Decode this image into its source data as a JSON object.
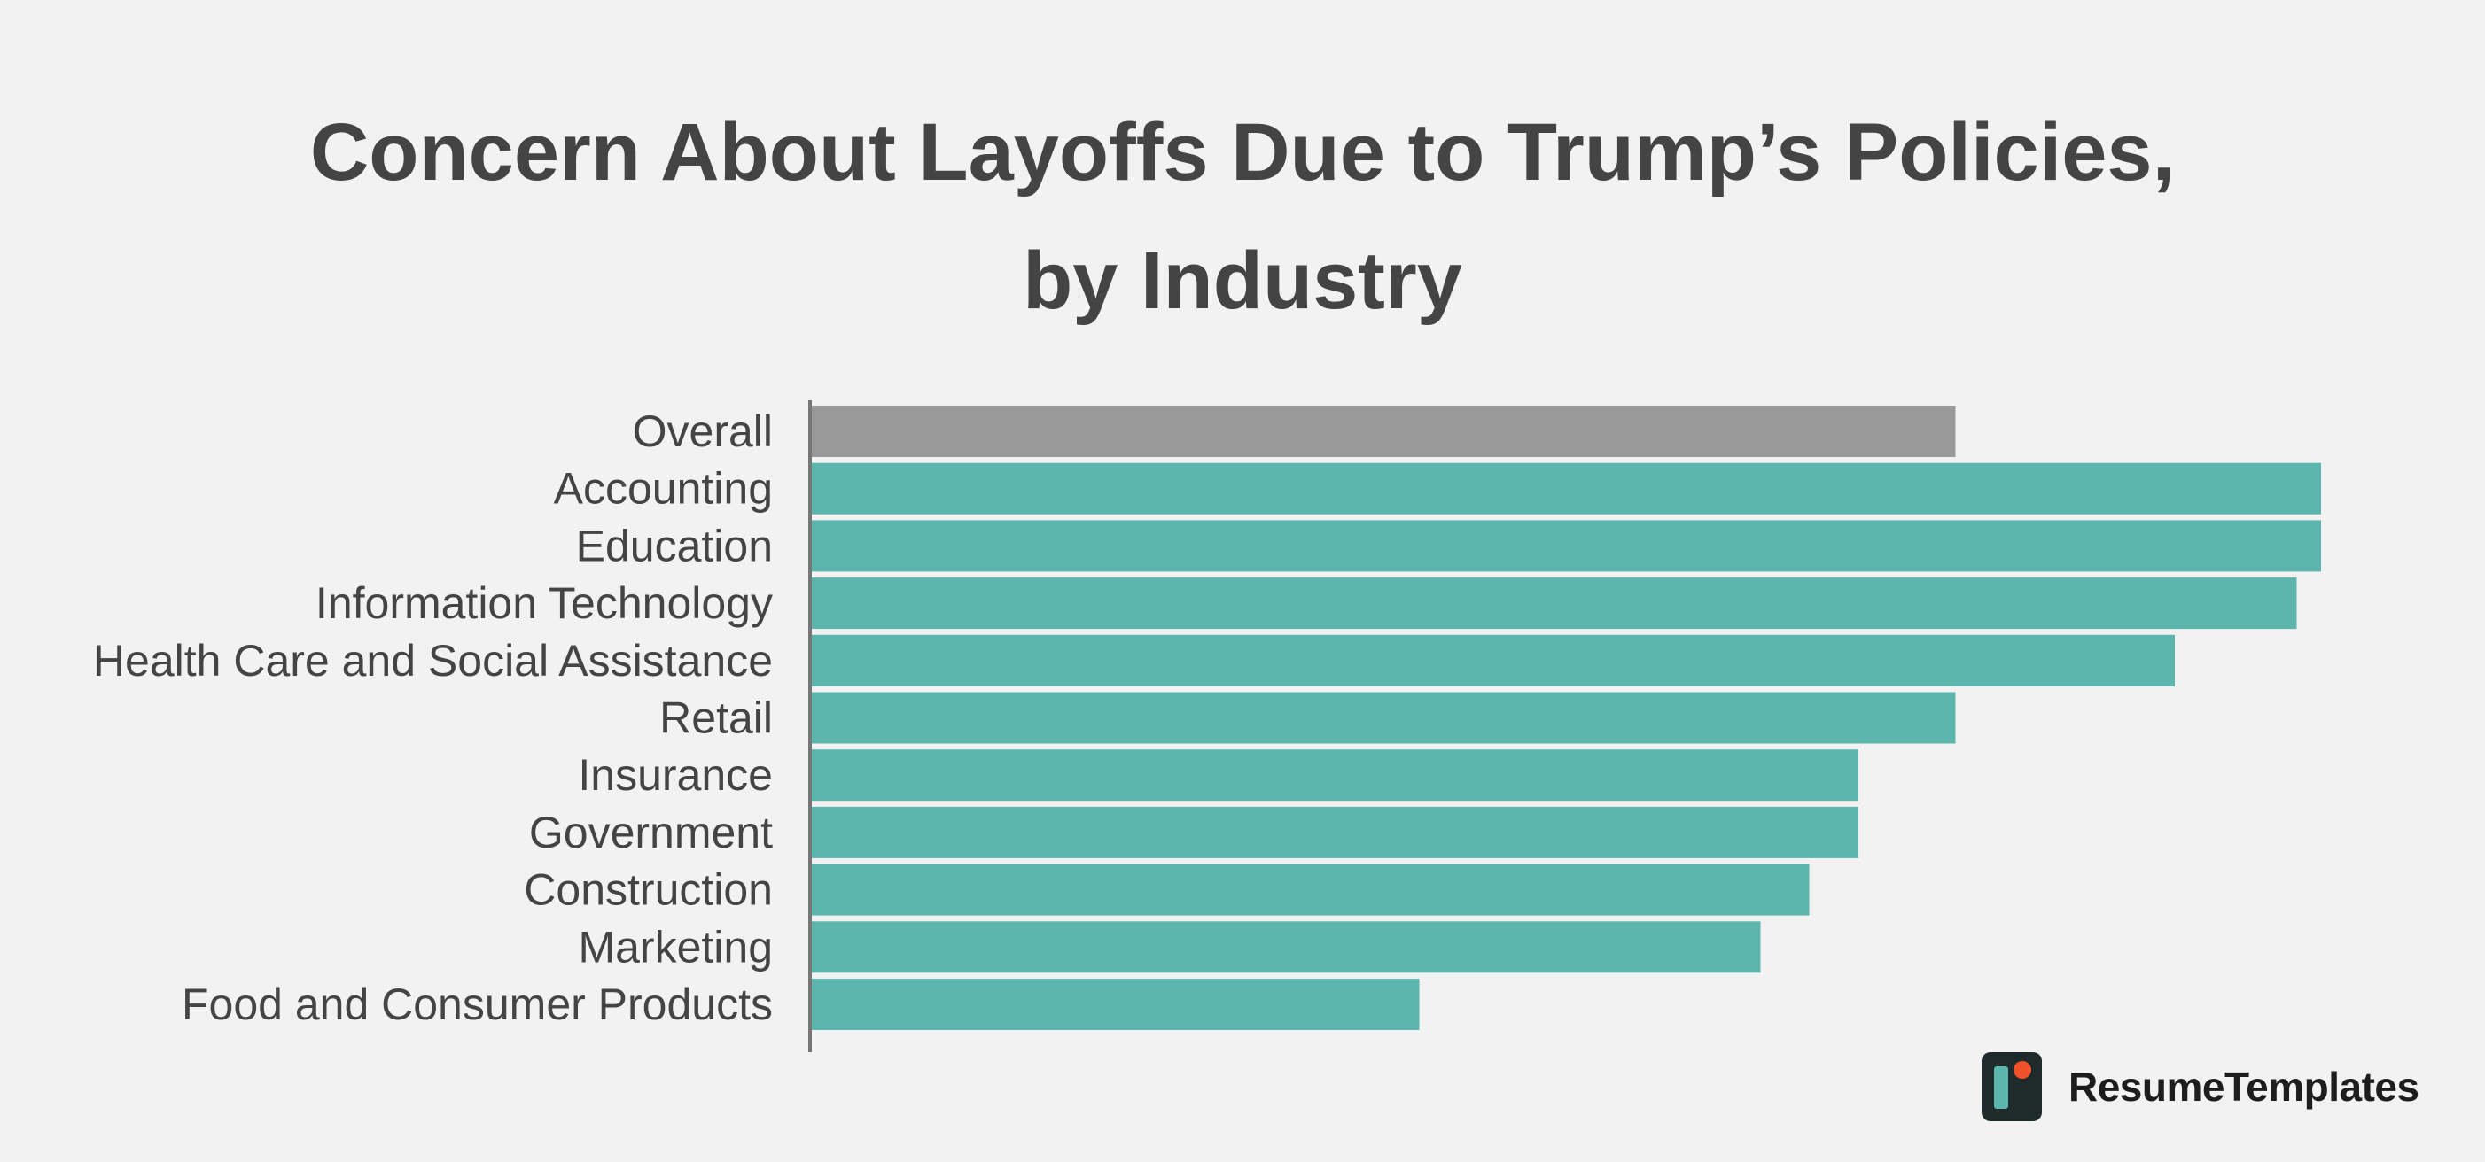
{
  "title_line1": "Concern About Layoffs Due to Trump’s Policies,",
  "title_line2": "by Industry",
  "brand": {
    "name": "ResumeTemplates",
    "logo_icon": "resumetemplates-logo-icon",
    "logo_colors": {
      "background": "#1f2b2b",
      "bar": "#5db6ae",
      "dot": "#f0502a"
    }
  },
  "colors": {
    "overall_bar": "#999999",
    "industry_bar": "#5db6ae",
    "axis": "#777777",
    "text": "#444444",
    "background": "#f2f2f2"
  },
  "chart_data": {
    "type": "bar",
    "orientation": "horizontal",
    "title": "Concern About Layoffs Due to Trump’s Policies, by Industry",
    "xlabel": "",
    "ylabel": "",
    "grid": false,
    "legend": "none",
    "value_labels_shown": false,
    "xlim": [
      0,
      100
    ],
    "categories": [
      "Overall",
      "Accounting",
      "Education",
      "Information Technology",
      "Health Care and Social Assistance",
      "Retail",
      "Insurance",
      "Government",
      "Construction",
      "Marketing",
      "Food and Consumer Products"
    ],
    "values": [
      47,
      62,
      62,
      61,
      56,
      47,
      43,
      43,
      41,
      39,
      25
    ],
    "highlight": "Overall"
  }
}
